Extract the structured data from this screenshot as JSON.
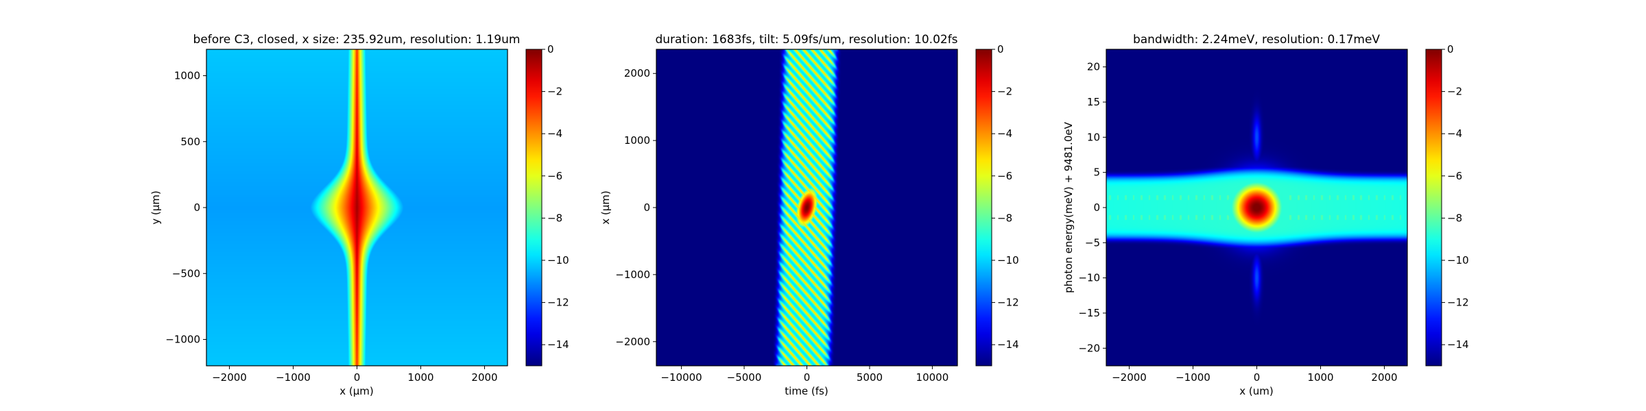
{
  "figure": {
    "panel_count": 3,
    "colormap": "jet"
  },
  "chart_data": [
    {
      "type": "heatmap",
      "title": "before C3, closed, x size: 235.92um, resolution: 1.19um",
      "xlabel": "x (μm)",
      "ylabel": "y (μm)",
      "xlim": [
        -2360,
        2360
      ],
      "ylim": [
        -1200,
        1200
      ],
      "xticks": [
        -2000,
        -1000,
        0,
        1000,
        2000
      ],
      "xtick_labels": [
        "−2000",
        "−1000",
        "0",
        "1000",
        "2000"
      ],
      "yticks": [
        -1000,
        -500,
        0,
        500,
        1000
      ],
      "ytick_labels": [
        "−1000",
        "−500",
        "0",
        "500",
        "1000"
      ],
      "clim": [
        -15,
        0
      ],
      "colorbar_ticks": [
        0,
        -2,
        -4,
        -6,
        -8,
        -10,
        -12,
        -14
      ],
      "colorbar_labels": [
        "0",
        "−2",
        "−4",
        "−6",
        "−8",
        "−10",
        "−12",
        "−14"
      ],
      "pattern": "beam"
    },
    {
      "type": "heatmap",
      "title": "duration: 1683fs, tilt: 5.09fs/um, resolution: 10.02fs",
      "xlabel": "time (fs)",
      "ylabel": "x (μm)",
      "xlim": [
        -12000,
        12000
      ],
      "ylim": [
        -2360,
        2360
      ],
      "xticks": [
        -10000,
        -5000,
        0,
        5000,
        10000
      ],
      "xtick_labels": [
        "−10000",
        "−5000",
        "0",
        "5000",
        "10000"
      ],
      "yticks": [
        -2000,
        -1000,
        0,
        1000,
        2000
      ],
      "ytick_labels": [
        "−2000",
        "−1000",
        "0",
        "1000",
        "2000"
      ],
      "clim": [
        -15,
        0
      ],
      "colorbar_ticks": [
        0,
        -2,
        -4,
        -6,
        -8,
        -10,
        -12,
        -14
      ],
      "colorbar_labels": [
        "0",
        "−2",
        "−4",
        "−6",
        "−8",
        "−10",
        "−12",
        "−14"
      ],
      "pattern": "tilted_fringes"
    },
    {
      "type": "heatmap",
      "title": "bandwidth: 2.24meV, resolution: 0.17meV",
      "xlabel": "x (um)",
      "ylabel": "photon energy(meV) + 9481.0eV",
      "xlim": [
        -2360,
        2360
      ],
      "ylim": [
        -22.5,
        22.5
      ],
      "xticks": [
        -2000,
        -1000,
        0,
        1000,
        2000
      ],
      "xtick_labels": [
        "−2000",
        "−1000",
        "0",
        "1000",
        "2000"
      ],
      "yticks": [
        -20,
        -15,
        -10,
        -5,
        0,
        5,
        10,
        15,
        20
      ],
      "ytick_labels": [
        "−20",
        "−15",
        "−10",
        "−5",
        "0",
        "5",
        "10",
        "15",
        "20"
      ],
      "clim": [
        -15,
        0
      ],
      "colorbar_ticks": [
        0,
        -2,
        -4,
        -6,
        -8,
        -10,
        -12,
        -14
      ],
      "colorbar_labels": [
        "0",
        "−2",
        "−4",
        "−6",
        "−8",
        "−10",
        "−12",
        "−14"
      ],
      "pattern": "spectrum_band"
    }
  ]
}
